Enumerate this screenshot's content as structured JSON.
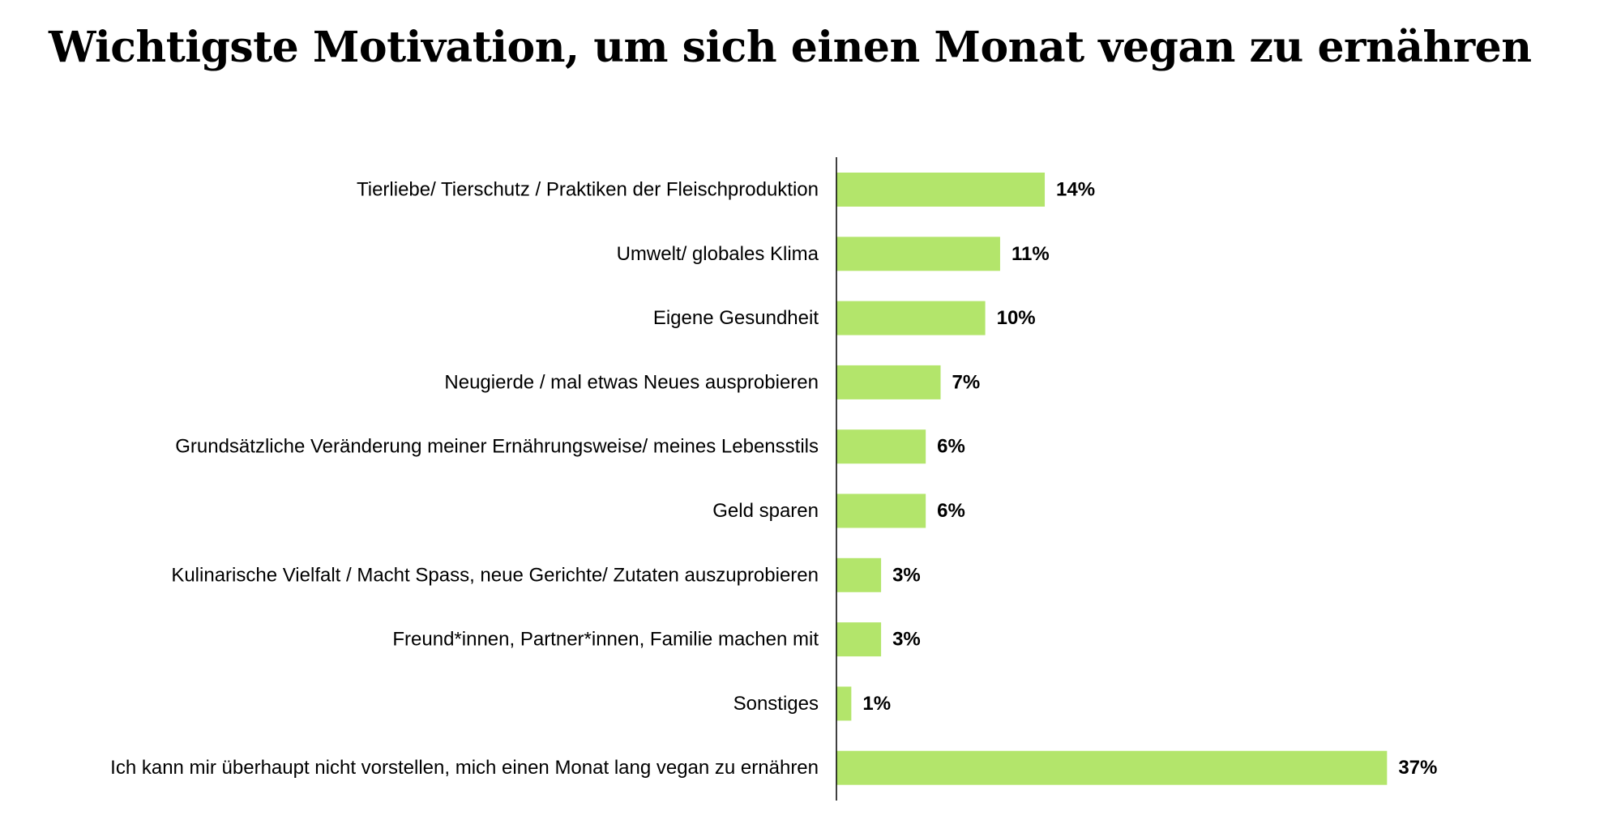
{
  "chart_data": {
    "type": "bar",
    "orientation": "horizontal",
    "title": "Wichtigste Motivation, um  sich einen Monat vegan zu ernähren",
    "categories": [
      "Tierliebe/ Tierschutz / Praktiken der Fleischproduktion",
      "Umwelt/ globales Klima",
      "Eigene Gesundheit",
      "Neugierde / mal etwas Neues ausprobieren",
      "Grundsätzliche Veränderung meiner Ernährungsweise/ meines Lebensstils",
      "Geld sparen",
      "Kulinarische Vielfalt / Macht Spass, neue Gerichte/ Zutaten auszuprobieren",
      "Freund*innen, Partner*innen, Familie machen mit",
      "Sonstiges",
      "Ich kann mir überhaupt nicht vorstellen, mich einen Monat lang vegan zu ernähren"
    ],
    "values": [
      14,
      11,
      10,
      7,
      6,
      6,
      3,
      3,
      1,
      37
    ],
    "value_labels": [
      "14%",
      "11%",
      "10%",
      "7%",
      "6%",
      "6%",
      "3%",
      "3%",
      "1%",
      "37%"
    ],
    "unit": "%",
    "bar_color": "#b3e56b",
    "axis_color": "#000000",
    "xlim": [
      0,
      40
    ],
    "grid": false,
    "legend": "none"
  }
}
